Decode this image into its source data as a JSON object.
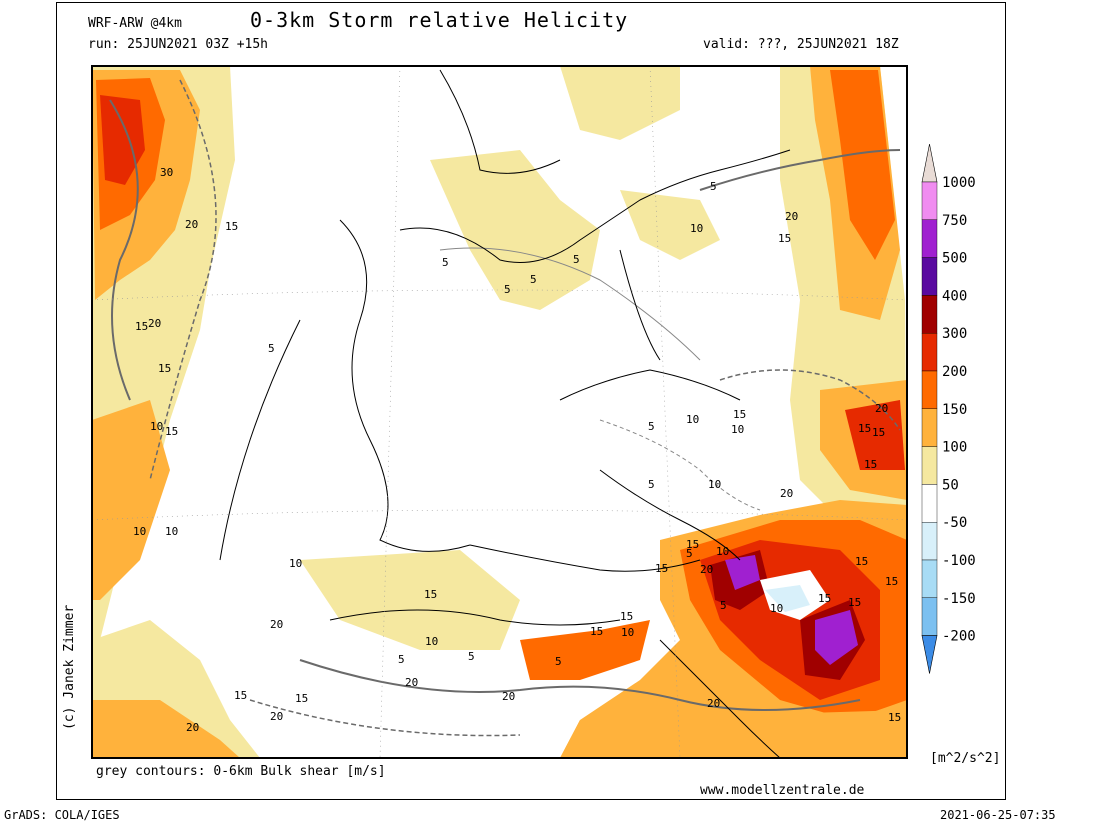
{
  "header": {
    "model": "WRF-ARW @4km",
    "title": "0-3km Storm relative Helicity",
    "run": "run: 25JUN2021 03Z +15h",
    "valid": "valid: ???, 25JUN2021 18Z"
  },
  "footer": {
    "contours_note": "grey contours: 0-6km Bulk shear [m/s]",
    "website": "www.modellzentrale.de",
    "copyright": "(c) Janek Zimmer",
    "grads": "GrADS: COLA/IGES",
    "timestamp": "2021-06-25-07:35"
  },
  "colorbar": {
    "unit": "[m^2/s^2]",
    "labels": [
      "1000",
      "750",
      "500",
      "400",
      "300",
      "200",
      "150",
      "100",
      "50",
      "-50",
      "-100",
      "-150",
      "-200"
    ],
    "colors": {
      "top_arrow": "#e9dcd6",
      "c750_1000": "#f08cf0",
      "c500_750": "#a020d0",
      "c400_500": "#5a0aa0",
      "c300_400": "#a00000",
      "c200_300": "#e62a00",
      "c150_200": "#ff6a00",
      "c100_150": "#ffb23c",
      "c50_100": "#f5e8a0",
      "c_neutral": "#ffffff",
      "cm50_m100": "#d8f0fa",
      "cm100_m150": "#a8dcf5",
      "cm150_m200": "#7cc0f0",
      "bottom_arrow": "#3c8ce6"
    }
  },
  "contour_labels": [
    "30",
    "20",
    "15",
    "20",
    "15",
    "5",
    "5",
    "5",
    "5",
    "5",
    "10",
    "20",
    "15",
    "5",
    "15",
    "20",
    "15",
    "15",
    "10",
    "5",
    "10",
    "5",
    "15",
    "10",
    "20",
    "15",
    "10",
    "5",
    "15",
    "10",
    "15",
    "20",
    "15",
    "10",
    "5",
    "5",
    "10",
    "10",
    "10",
    "20",
    "15",
    "15",
    "20",
    "20",
    "15",
    "5",
    "15",
    "15",
    "20",
    "15",
    "20",
    "10",
    "15",
    "15",
    "10",
    "20",
    "15",
    "5",
    "15"
  ]
}
